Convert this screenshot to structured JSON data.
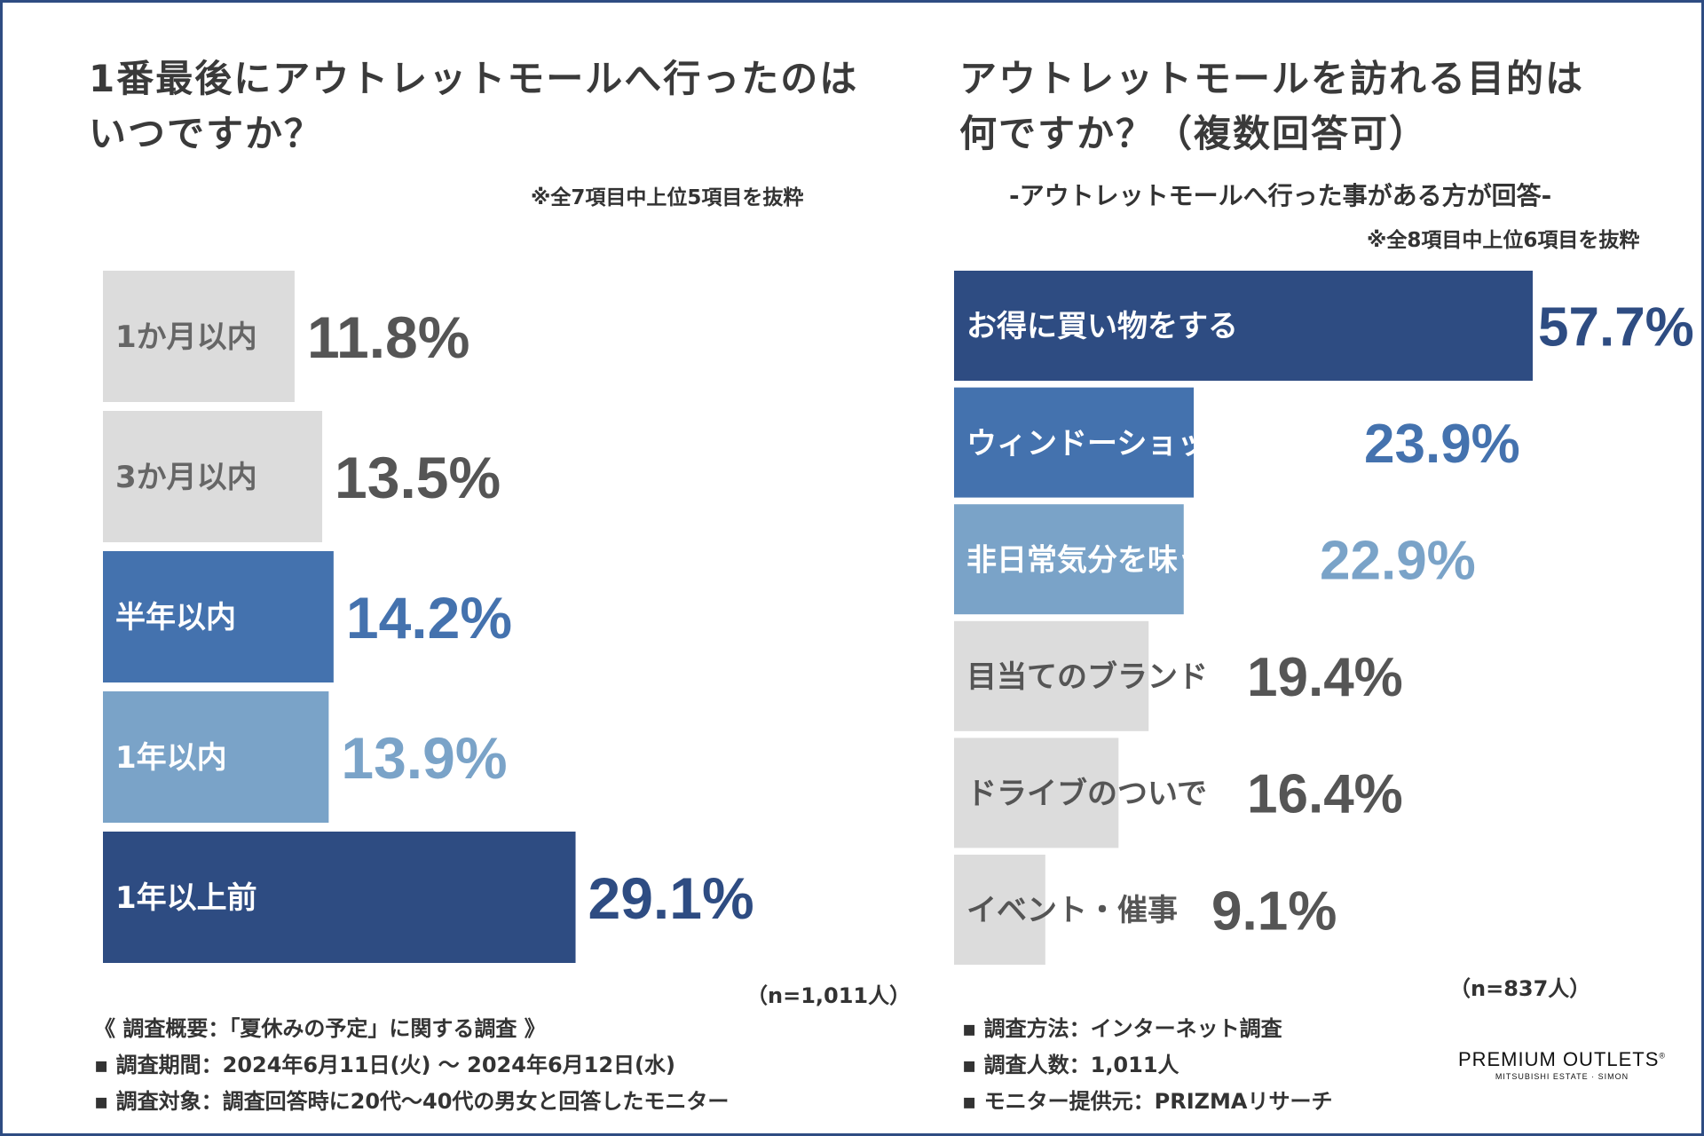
{
  "left": {
    "title_line1": "1番最後にアウトレットモールへ行ったのは",
    "title_line2": "いつですか？",
    "note": "※全7項目中上位5項目を抜粋",
    "n_label": "（n=1,011人）"
  },
  "right": {
    "title_line1": "アウトレットモールを訪れる目的は",
    "title_line2": "何ですか？（複数回答可）",
    "subtitle": "-アウトレットモールへ行った事がある方が回答-",
    "note": "※全8項目中上位6項目を抜粋",
    "n_label": "（n=837人）"
  },
  "chart_data": [
    {
      "type": "bar",
      "orientation": "horizontal",
      "title": "1番最後にアウトレットモールへ行ったのはいつですか？",
      "categories": [
        "1か月以内",
        "3か月以内",
        "半年以内",
        "1年以内",
        "1年以上前"
      ],
      "values": [
        11.8,
        13.5,
        14.2,
        13.9,
        29.1
      ],
      "value_labels": [
        "11.8%",
        "13.5%",
        "14.2%",
        "13.9%",
        "29.1%"
      ],
      "colors": [
        "#dcdcdc",
        "#dcdcdc",
        "#4472ae",
        "#7aa3c8",
        "#2e4c82"
      ],
      "label_colors": [
        "#666666",
        "#666666",
        "#ffffff",
        "#ffffff",
        "#ffffff"
      ],
      "value_colors": [
        "#555555",
        "#555555",
        "#4472ae",
        "#7aa3c8",
        "#2e4c82"
      ],
      "unit": "%"
    },
    {
      "type": "bar",
      "orientation": "horizontal",
      "title": "アウトレットモールを訪れる目的は何ですか？（複数回答可）",
      "categories": [
        "お得に買い物をする",
        "ウィンドーショッピング",
        "非日常気分を味うため",
        "目当てのブランド",
        "ドライブのついで",
        "イベント・催事"
      ],
      "values": [
        57.7,
        23.9,
        22.9,
        19.4,
        16.4,
        9.1
      ],
      "value_labels": [
        "57.7%",
        "23.9%",
        "22.9%",
        "19.4%",
        "16.4%",
        "9.1%"
      ],
      "colors": [
        "#2e4c82",
        "#4472ae",
        "#7aa3c8",
        "#dcdcdc",
        "#dcdcdc",
        "#dcdcdc"
      ],
      "label_colors": [
        "#ffffff",
        "#ffffff",
        "#ffffff",
        "#555555",
        "#555555",
        "#555555"
      ],
      "value_colors": [
        "#2e4c82",
        "#4472ae",
        "#7aa3c8",
        "#555555",
        "#555555",
        "#555555"
      ],
      "unit": "%"
    }
  ],
  "footer_left": {
    "line1": "《 調査概要：「夏休みの予定」に関する調査 》",
    "line2": "▪ 調査期間：2024年6月11日(火) 〜 2024年6月12日(水)",
    "line3": "▪ 調査対象：調査回答時に20代〜40代の男女と回答したモニター"
  },
  "footer_right": {
    "line1": "▪ 調査方法：インターネット調査",
    "line2": "▪ 調査人数：1,011人",
    "line3": "▪ モニター提供元：PRIZMAリサーチ"
  },
  "logo": {
    "main": "PREMIUM OUTLETS",
    "mark": "®",
    "sub": "MITSUBISHI ESTATE · SIMON"
  }
}
